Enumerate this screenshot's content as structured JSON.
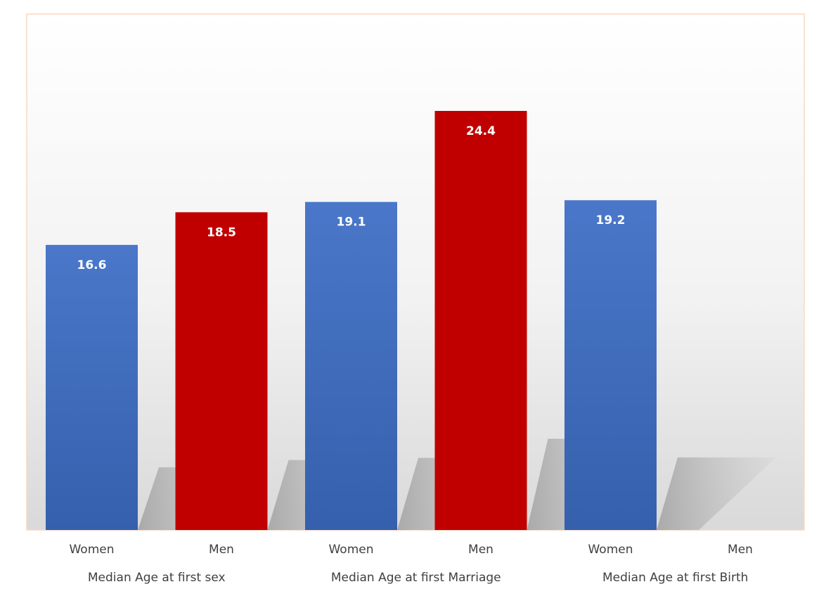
{
  "chart_data": {
    "type": "bar",
    "groups": [
      {
        "label": "Median Age at first sex",
        "bars": [
          {
            "category": "Women",
            "value": 16.6,
            "label": "16.6",
            "color": "#4472c4"
          },
          {
            "category": "Men",
            "value": 18.5,
            "label": "18.5",
            "color": "#c00000"
          }
        ]
      },
      {
        "label": "Median Age at first Marriage",
        "bars": [
          {
            "category": "Women",
            "value": 19.1,
            "label": "19.1",
            "color": "#4472c4"
          },
          {
            "category": "Men",
            "value": 24.4,
            "label": "24.4",
            "color": "#c00000"
          }
        ]
      },
      {
        "label": "Median Age at first Birth",
        "bars": [
          {
            "category": "Women",
            "value": 19.2,
            "label": "19.2",
            "color": "#4472c4"
          },
          {
            "category": "Men",
            "value": null,
            "label": "",
            "color": "#c00000"
          }
        ]
      }
    ],
    "ylim": [
      0,
      24.4
    ],
    "grid": false,
    "legend": false,
    "colors": {
      "women": "#4472c4",
      "men": "#c00000",
      "plot_border": "#f8d9c4"
    }
  }
}
